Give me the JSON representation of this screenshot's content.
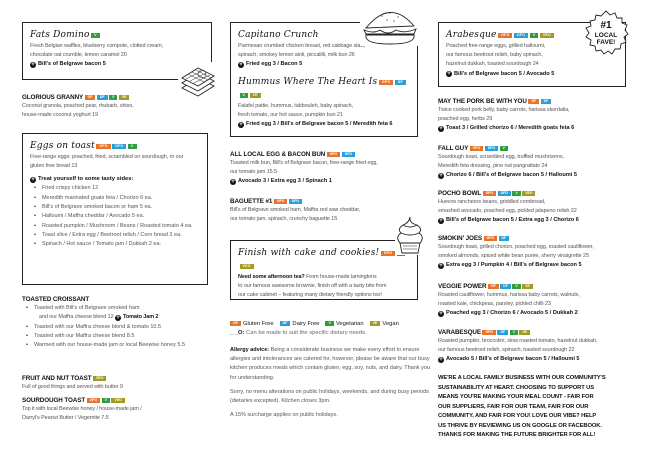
{
  "badge_colors": {
    "GF": "#e8742a",
    "GFO": "#e8742a",
    "DF": "#2a9fd8",
    "DFO": "#2a9fd8",
    "V": "#2e9e3e",
    "VE": "#a39a22",
    "VEO": "#a39a22"
  },
  "blocks": [
    {
      "id": "fats",
      "box": true,
      "items": [
        {
          "title": "Fats Domino",
          "script": true,
          "badges": [
            "V"
          ],
          "lines": [
            "Fresh Belgian waffles, blueberry compote, clotted cream,",
            "chocolate oat crumble, lemon caramel  20"
          ],
          "add": "Bill's of Belgrave bacon 5"
        }
      ]
    },
    {
      "id": "granny",
      "items": [
        {
          "title": "GLORIOUS GRANNY",
          "badges": [
            "GF",
            "DF",
            "V",
            "VE"
          ],
          "lines": [
            "Coconut granola, poached pear, rhubarb, shiso,",
            "house-made coconut yoghurt  19"
          ]
        }
      ]
    },
    {
      "id": "eggs",
      "box": true,
      "items": [
        {
          "title": "Eggs on toast",
          "script": true,
          "badges": [
            "GFO",
            "DFO",
            "V"
          ],
          "lines": [
            "Free-range eggs: poached, fried, scrambled on sourdough, or our",
            "gluten free bread  13"
          ],
          "sub": "Treat yourself to some tasty sides:",
          "bullets": [
            "Fried crispy chicken  12",
            "Meredith marinated goats feta / Chorizo  6 ea.",
            "Bill's of Belgrave smoked bacon or ham  5 ea.",
            "Halloumi / Maffra cheddar / Avocado  5 ea.",
            "Roasted pumpkin / Mushroom / Beans / Roasted tomato  4 ea.",
            "Toast slice  / Extra egg / Beetroot relish / Corn bread  3 ea.",
            "Spinach / Hot sauce / Tomato jam / Dukkah  2 ea."
          ]
        }
      ]
    },
    {
      "id": "croissant",
      "items": [
        {
          "title": "TOASTED CROISSANT",
          "bullets": [
            "Toasted with Bill's of Belgrave smoked ham",
            "Toasted with our Maffra cheese blend & tomato  10.5",
            "Toasted with our Maffra cheese blend  8.5",
            "Warmed with our house-made jam or local Beewise honey  5.5"
          ],
          "bullet_cont": "and our Maffra cheese blend  12",
          "bullet_cont_add": "Tomato Jam 2"
        }
      ]
    },
    {
      "id": "fruit",
      "items": [
        {
          "title": "FRUIT AND NUT TOAST",
          "badges": [
            "VEO"
          ],
          "lines": [
            "Full of good things and served with butter  9"
          ]
        }
      ]
    },
    {
      "id": "sourdough",
      "items": [
        {
          "title": "SOURDOUGH TOAST",
          "badges": [
            "GFO",
            "V",
            "VEO"
          ],
          "lines": [
            "Top it with local Beewise honey / house-made jam /",
            "Darryl's Peanut Butter / Vegemite  7.5"
          ]
        }
      ]
    },
    {
      "id": "capitano",
      "box": true,
      "items": [
        {
          "title": "Capitano Crunch",
          "script": true,
          "lines": [
            "Parmesan crumbed chicken breast, red cabbage slaw,",
            "spinach, smokey lemon aioli, piccalilli, milk bun  26"
          ],
          "add": "Fried egg 3 / Bacon 5"
        },
        {
          "title": "Hummus Where The Heart Is",
          "script": true,
          "badges": [
            "GFO",
            "DF",
            "V",
            "VE"
          ],
          "lines": [
            "Falafel pattie, hummus, tabbouleh, baby spinach,",
            "fresh tomato, our hot sauce, pumpkin bun  21"
          ],
          "add": "Fried egg 3 / Bill's of Belgrave bacon 5 / Meredith feta 6"
        }
      ]
    },
    {
      "id": "allegg",
      "items": [
        {
          "title": "ALL LOCAL EGG & BACON BUN",
          "badges": [
            "GFO",
            "DFO"
          ],
          "lines": [
            "Toasted milk bun, Bill's of Belgrave bacon, free-range fried egg,",
            "our tomato jam  15.5"
          ],
          "add": "Avocado 3 / Extra egg 3 / Spinach 1"
        }
      ]
    },
    {
      "id": "baguette",
      "items": [
        {
          "title": "BAGUETTE #1",
          "badges": [
            "GFO",
            "DFO"
          ],
          "lines": [
            "Bill's of Belgrave smoked ham, Maffra red wax cheddar,",
            "our tomato jam, spinach, crunchy baguette  15"
          ]
        }
      ]
    },
    {
      "id": "finish",
      "box": true,
      "items": [
        {
          "title": "Finish with cake and cookies!",
          "script": true,
          "badges": [
            "GFO",
            "V",
            "VEO"
          ],
          "lead": "Need some afternoon tea?",
          "lines": [
            " From house-made lamingtons",
            "to our famous awesome brownie, finish off with a tasty bite from",
            "our cake cabinet – featuring many dietary friendly options too!"
          ]
        }
      ]
    },
    {
      "id": "arabesque",
      "box": true,
      "items": [
        {
          "title": "Arabesque",
          "script": true,
          "badges": [
            "GFO",
            "DFO",
            "V",
            "VEO"
          ],
          "lines": [
            "Poached free-range eggs, grilled halloumi,",
            "our famous beetroot relish, baby spinach,",
            "hazelnut dukkah, toasted sourdough  24"
          ],
          "add": "Bill's of Belgrave bacon 5 / Avocado 5"
        }
      ]
    },
    {
      "id": "pork",
      "items": [
        {
          "title": "MAY THE PORK BE WITH YOU",
          "badges": [
            "GF",
            "DF"
          ],
          "lines": [
            "Twice cooked pork belly, baby carrots, harissa skordalia,",
            "poached egg, herbs  29"
          ],
          "add": "Toast 3 / Grilled chorizo 6 / Meredith goats feta 6"
        }
      ]
    },
    {
      "id": "fallguy",
      "items": [
        {
          "title": "FALL GUY",
          "badges": [
            "GFO",
            "DFO",
            "V"
          ],
          "lines": [
            "Sourdough toast, scrambled egg, truffled mushrooms,",
            "Meredith feta dressing, pine nut pangrattato  24"
          ],
          "add": "Chorizo 6 / Bill's of Belgrave bacon 5 / Halloumi 5"
        }
      ]
    },
    {
      "id": "pocho",
      "items": [
        {
          "title": "POCHO BOWL",
          "badges": [
            "GFO",
            "DFO",
            "V",
            "VEO"
          ],
          "lines": [
            "Huevos rancheros beans, griddled cornbread,",
            "smashed avocado, poached egg, pickled jalapeno relish  22"
          ],
          "add": "Bill's of Belgrave bacon 5 / Extra egg 3 / Chorizo 6"
        }
      ]
    },
    {
      "id": "smokin",
      "items": [
        {
          "title": "SMOKIN' JOES",
          "badges": [
            "GFO",
            "DF"
          ],
          "lines": [
            "Sourdough toast, grilled chorizo, poached egg, roasted cauliflower,",
            "smoked almonds, spiced white bean purée, sherry vinaigrette  25"
          ],
          "add": "Extra egg 3 / Pumpkin 4 / Bill's of Belgrave bacon 5"
        }
      ]
    },
    {
      "id": "veggie",
      "items": [
        {
          "title": "VEGGIE POWER",
          "badges": [
            "GF",
            "DF",
            "V",
            "VE"
          ],
          "lines": [
            "Roasted cauliflower, hummus, harissa baby carrots, walnuts,",
            "roasted kale, chickpeas, parsley, pickled chilli  23"
          ],
          "add": "Poached egg 3 / Chorizo 6 / Avocado 5 / Dukkah 2"
        }
      ]
    },
    {
      "id": "varabesque",
      "items": [
        {
          "title": "VARABESQUE",
          "badges": [
            "GFO",
            "DF",
            "V",
            "VE"
          ],
          "lines": [
            "Roasted pumpkin, broccolini, slow roasted tomato, hazelnut dukkah,",
            "our famous beetroot relish, spinach, toasted sourdough  22"
          ],
          "add": "Avocado 5 / Bill's of Belgrave bacon 5 / Halloumi 5"
        }
      ]
    }
  ],
  "legend": {
    "items": [
      {
        "code": "GF",
        "label": "Gluten Free"
      },
      {
        "code": "DF",
        "label": "Dairy Free"
      },
      {
        "code": "V",
        "label": "Vegetarian"
      },
      {
        "code": "VE",
        "label": "Vegan"
      }
    ],
    "o_prefix": "_ _O:",
    "o_text": " Can be made to suit the specific dietary needs."
  },
  "allergy": {
    "lead": "Allergy advice:",
    "text": " Being a considerate business we make every effort to ensure allergies and intolerances are catered for, however, please be aware that our busy kitchen produces meals which contain gluten, egg, soy, nuts, and dairy. Thank you for understanding.",
    "sorry": "Sorry, no menu alterations on public holidays, weekends, and during busy periods (dietaries excepted). Kitchen closes 3pm.",
    "surcharge": "A 15% surcharge applies on public holidays."
  },
  "community": [
    "WE'RE A LOCAL FAMILY BUSINESS WITH OUR COMMUNITY'S",
    "SUSTAINABILITY AT HEART. CHOOSING TO SUPPORT US",
    "MEANS YOU'RE MAKING YOUR MEAL COUNT - FAIR FOR",
    "OUR SUPPLIERS, FAIR FOR OUR TEAM, FAIR FOR OUR",
    "COMMUNITY, AND FAIR FOR YOU! LOVE OUR VIBE? HELP",
    "US THRIVE BY REVIEWING US ON GOOGLE OR FACEBOOK.",
    "THANKS FOR MAKING THE FUTURE BRIGHTER FOR ALL!"
  ],
  "fave_badge": {
    "line1": "#1",
    "line2": "LOCAL",
    "line3": "FAVE!"
  },
  "illustrations": [
    "waffles-icon",
    "burger-icon",
    "soft-serve-icon"
  ]
}
